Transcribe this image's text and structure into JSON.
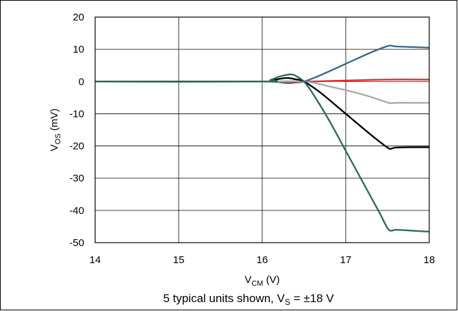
{
  "chart_data": {
    "type": "line",
    "xlabel": "V",
    "xlabel_sub": "CM",
    "xlabel_unit": " (V)",
    "ylabel": "V",
    "ylabel_sub": "OS",
    "ylabel_unit": " (mV)",
    "caption_pre": "5 typical units shown, V",
    "caption_sub": "S",
    "caption_post": " = ±18 V",
    "xlim": [
      14,
      18
    ],
    "ylim": [
      -50,
      20
    ],
    "xticks": [
      14,
      15,
      16,
      17,
      18
    ],
    "yticks": [
      20,
      10,
      0,
      -10,
      -20,
      -30,
      -40,
      -50
    ],
    "grid": true,
    "series": [
      {
        "color": "#3d6a87",
        "x": [
          14,
          16.0,
          16.1,
          16.2,
          16.3,
          16.4,
          16.5,
          16.7,
          17.0,
          17.3,
          17.5,
          17.55,
          17.6,
          17.8,
          18.0
        ],
        "y": [
          0,
          0,
          0,
          -0.2,
          -0.5,
          -0.3,
          0,
          2,
          5.5,
          9,
          11,
          11.1,
          10.9,
          10.7,
          10.5
        ]
      },
      {
        "color": "#e8262a",
        "x": [
          14,
          16.0,
          16.5,
          17.0,
          17.5,
          18.0
        ],
        "y": [
          0,
          0,
          0,
          0.3,
          0.6,
          0.6
        ]
      },
      {
        "color": "#a9a9a9",
        "x": [
          14,
          16.0,
          16.5,
          16.8,
          17.2,
          17.5,
          17.55,
          17.6,
          17.8,
          18.0
        ],
        "y": [
          0,
          0,
          0,
          -1.5,
          -4,
          -6.5,
          -6.7,
          -6.6,
          -6.6,
          -6.6
        ]
      },
      {
        "color": "#000000",
        "x": [
          14,
          16.0,
          16.1,
          16.2,
          16.3,
          16.4,
          16.5,
          16.7,
          17.0,
          17.3,
          17.5,
          17.55,
          17.6,
          17.8,
          18.0
        ],
        "y": [
          0,
          0,
          0.3,
          0.8,
          1.1,
          0.7,
          0,
          -3.5,
          -10,
          -16.5,
          -20.5,
          -20.8,
          -20.5,
          -20.4,
          -20.4
        ]
      },
      {
        "color": "#2b6e4f",
        "x": [
          14,
          16.0,
          16.1,
          16.2,
          16.3,
          16.35,
          16.4,
          16.5,
          16.6,
          16.8,
          17.0,
          17.2,
          17.4,
          17.5,
          17.55,
          17.6,
          17.8,
          18.0
        ],
        "y": [
          0,
          0,
          0.5,
          1.5,
          2.1,
          2.2,
          1.8,
          0,
          -3.5,
          -12,
          -21.5,
          -31,
          -40.5,
          -45.5,
          -46.3,
          -46,
          -46.3,
          -46.6
        ]
      }
    ]
  }
}
